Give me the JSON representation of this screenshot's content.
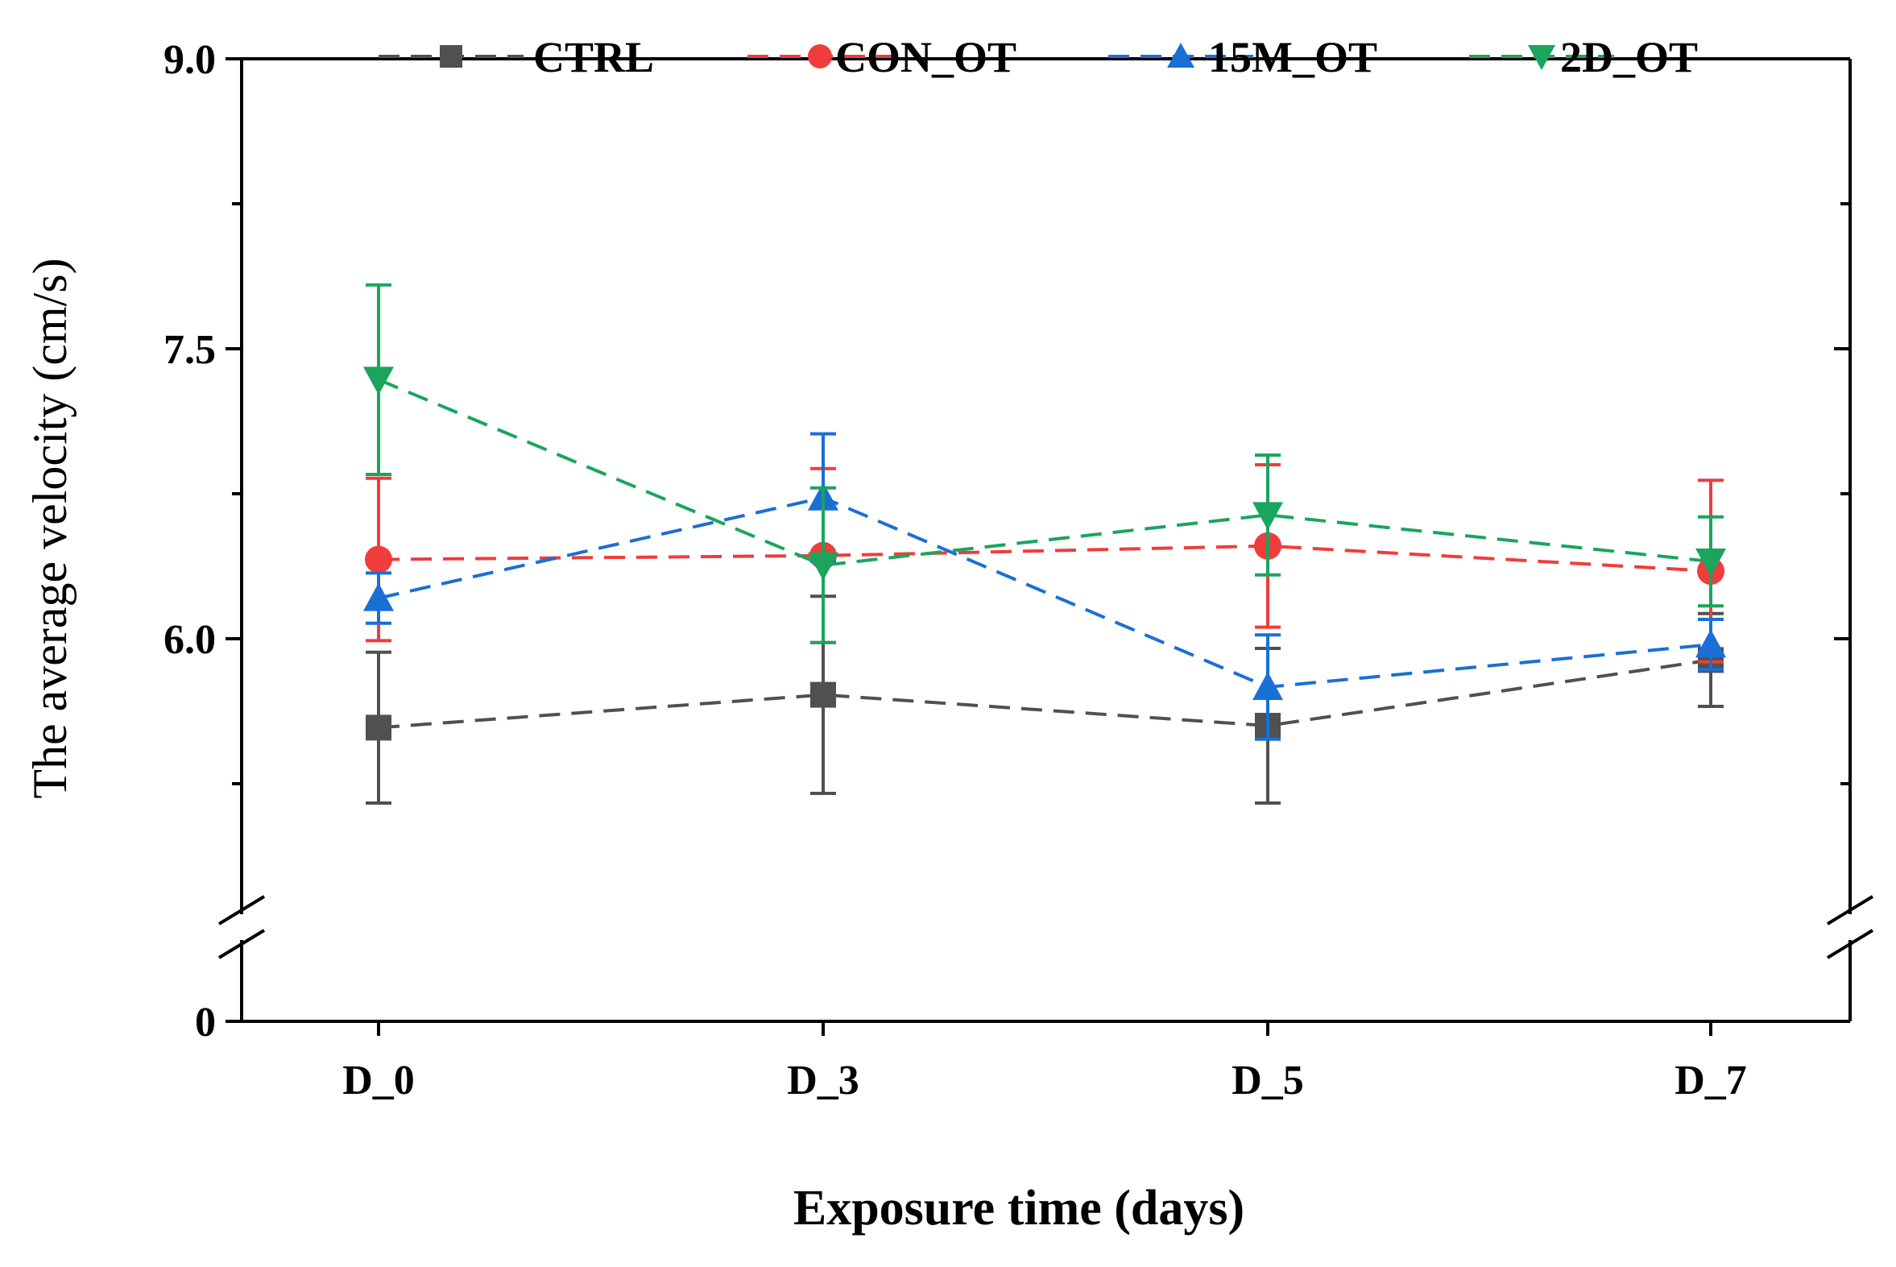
{
  "chart_data": {
    "type": "line",
    "title": "",
    "xlabel": "Exposure time (days)",
    "ylabel": "The average velocity (cm/s)",
    "categories": [
      "D_0",
      "D_3",
      "D_5",
      "D_7"
    ],
    "y_axis": {
      "lower_segment": [
        0,
        0.4
      ],
      "upper_segment": [
        4.55,
        9.0
      ],
      "axis_break": true,
      "major_ticks": [
        0,
        6.0,
        7.5,
        9.0
      ],
      "major_tick_labels": [
        "0",
        "6.0",
        "7.5",
        "9.0"
      ],
      "minor_ticks": [
        5.25,
        6.75,
        8.25
      ]
    },
    "legend_position": "top",
    "series": [
      {
        "name": "CTRL",
        "color": "#505050",
        "marker": "square",
        "values": [
          5.54,
          5.71,
          5.55,
          5.89
        ],
        "errors": [
          0.39,
          0.51,
          0.4,
          0.24
        ]
      },
      {
        "name": "CON_OT",
        "color": "#f03c3c",
        "marker": "circle",
        "values": [
          6.41,
          6.43,
          6.48,
          6.35
        ],
        "errors": [
          0.42,
          0.45,
          0.42,
          0.47
        ]
      },
      {
        "name": "15M_OT",
        "color": "#1a6fd6",
        "marker": "triangle-up",
        "values": [
          6.21,
          6.73,
          5.75,
          5.97
        ],
        "errors": [
          0.13,
          0.33,
          0.27,
          0.13
        ]
      },
      {
        "name": "2D_OT",
        "color": "#1aa55c",
        "marker": "triangle-down",
        "values": [
          7.34,
          6.38,
          6.64,
          6.4
        ],
        "errors": [
          0.49,
          0.4,
          0.31,
          0.23
        ]
      }
    ]
  }
}
